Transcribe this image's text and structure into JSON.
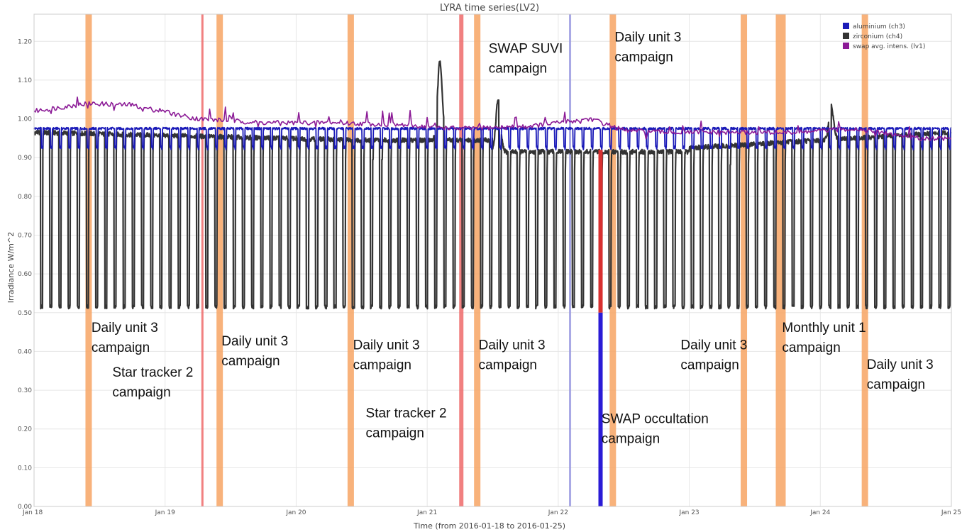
{
  "chart_data": {
    "type": "line",
    "title": "LYRA time series(LV2)",
    "xlabel": "Time (from 2016-01-18 to 2016-01-25)",
    "ylabel": "Irradiance W/m^2",
    "xlim": [
      "2016-01-18",
      "2016-01-25"
    ],
    "ylim": [
      0,
      1.27
    ],
    "grid": true,
    "legend_position": "top-right",
    "x_ticks": [
      {
        "label": "Jan 18",
        "date": "2016-01-18"
      },
      {
        "label": "Jan 19",
        "date": "2016-01-19"
      },
      {
        "label": "Jan 20",
        "date": "2016-01-20"
      },
      {
        "label": "Jan 21",
        "date": "2016-01-21"
      },
      {
        "label": "Jan 22",
        "date": "2016-01-22"
      },
      {
        "label": "Jan 23",
        "date": "2016-01-23"
      },
      {
        "label": "Jan 24",
        "date": "2016-01-24"
      },
      {
        "label": "Jan 25",
        "date": "2016-01-25"
      }
    ],
    "y_ticks": [
      {
        "label": "0.00",
        "value": 0.0
      },
      {
        "label": "0.10",
        "value": 0.1
      },
      {
        "label": "0.20",
        "value": 0.2
      },
      {
        "label": "0.30",
        "value": 0.3
      },
      {
        "label": "0.40",
        "value": 0.4
      },
      {
        "label": "0.50",
        "value": 0.5
      },
      {
        "label": "0.60",
        "value": 0.6
      },
      {
        "label": "0.70",
        "value": 0.7
      },
      {
        "label": "0.80",
        "value": 0.8
      },
      {
        "label": "0.90",
        "value": 0.9
      },
      {
        "label": "1.00",
        "value": 1.0
      },
      {
        "label": "1.10",
        "value": 1.1
      },
      {
        "label": "1.20",
        "value": 1.2
      }
    ],
    "series": [
      {
        "name": "aluminium (ch3)",
        "color": "#1a1ab8",
        "pattern": "periodic dips",
        "high": 0.975,
        "low": 0.92,
        "cycles_per_day": 14.3
      },
      {
        "name": "zirconium (ch4)",
        "color": "#333333",
        "pattern": "periodic deep dips",
        "high_start": 0.965,
        "high_mid": 0.945,
        "high_end": 0.965,
        "low": 0.51,
        "cycles_per_day": 14.3,
        "spikes": [
          {
            "date": "2016-01-21T02:20",
            "value": 1.15
          },
          {
            "date": "2016-01-21T13:00",
            "value": 1.08
          },
          {
            "date": "2016-01-24T02:00",
            "value": 1.03
          }
        ]
      },
      {
        "name": "swap avg. intens. (lv1)",
        "color": "#8b1a96",
        "pattern": "noisy trend",
        "points": [
          {
            "date": "2016-01-18T00:00",
            "value": 1.02
          },
          {
            "date": "2016-01-18T10:00",
            "value": 1.04
          },
          {
            "date": "2016-01-18T18:00",
            "value": 1.035
          },
          {
            "date": "2016-01-19T06:00",
            "value": 1.0
          },
          {
            "date": "2016-01-19T18:00",
            "value": 0.99
          },
          {
            "date": "2016-01-20T06:00",
            "value": 0.99
          },
          {
            "date": "2016-01-20T18:00",
            "value": 0.985
          },
          {
            "date": "2016-01-21T06:00",
            "value": 0.975
          },
          {
            "date": "2016-01-21T18:00",
            "value": 0.98
          },
          {
            "date": "2016-01-22T06:00",
            "value": 1.0
          },
          {
            "date": "2016-01-22T12:00",
            "value": 0.97
          },
          {
            "date": "2016-01-22T20:00",
            "value": 0.965
          },
          {
            "date": "2016-01-23T06:00",
            "value": 0.965
          },
          {
            "date": "2016-01-23T20:00",
            "value": 0.965
          },
          {
            "date": "2016-01-24T06:00",
            "value": 0.975
          },
          {
            "date": "2016-01-24T18:00",
            "value": 0.95
          },
          {
            "date": "2016-01-25T00:00",
            "value": 0.95
          }
        ]
      }
    ],
    "campaign_bands": [
      {
        "date": "2016-01-18T10:00",
        "color": "#f7a564",
        "kind": "wide"
      },
      {
        "date": "2016-01-19T06:50",
        "color": "#ee6a6a",
        "kind": "narrow"
      },
      {
        "date": "2016-01-19T10:00",
        "color": "#f7a564",
        "kind": "wide"
      },
      {
        "date": "2016-01-20T10:00",
        "color": "#f7a564",
        "kind": "wide"
      },
      {
        "date": "2016-01-21T06:15",
        "color": "#ee6a6a",
        "kind": "medium"
      },
      {
        "date": "2016-01-21T09:10",
        "color": "#f7a564",
        "kind": "wide"
      },
      {
        "date": "2016-01-22T02:10",
        "color": "#9a9ae0",
        "kind": "narrow"
      },
      {
        "date": "2016-01-22T10:00",
        "color": "#f7a564",
        "kind": "wide"
      },
      {
        "date": "2016-01-23T10:00",
        "color": "#f7a564",
        "kind": "wide"
      },
      {
        "date": "2016-01-23T16:45",
        "color": "#f7a564",
        "kind": "xwide"
      },
      {
        "date": "2016-01-24T08:10",
        "color": "#f7a564",
        "kind": "wide"
      }
    ],
    "occultation": {
      "date": "2016-01-22T07:45",
      "value_top": 0.5,
      "value_bottom": 0.0,
      "color": "#2b1bd6",
      "red_top": 0.92,
      "red_color": "#d83030"
    },
    "annotations": [
      {
        "lines": [
          "Daily unit 3",
          "campaign"
        ],
        "date": "2016-01-18T10:30",
        "value": 0.45,
        "style": "annot"
      },
      {
        "lines": [
          "Star tracker 2",
          "campaign"
        ],
        "date": "2016-01-18T14:20",
        "value": 0.335,
        "style": "annot"
      },
      {
        "lines": [
          "Daily unit 3",
          "campaign"
        ],
        "date": "2016-01-19T10:20",
        "value": 0.415,
        "style": "annot"
      },
      {
        "lines": [
          "Daily unit 3",
          "campaign"
        ],
        "date": "2016-01-20T10:25",
        "value": 0.405,
        "style": "annot"
      },
      {
        "lines": [
          "Star tracker 2",
          "campaign"
        ],
        "date": "2016-01-20T12:45",
        "value": 0.23,
        "style": "annot"
      },
      {
        "lines": [
          "Daily unit 3",
          "campaign"
        ],
        "date": "2016-01-21T09:25",
        "value": 0.405,
        "style": "annot"
      },
      {
        "lines": [
          "SWAP SUVI",
          "campaign"
        ],
        "date": "2016-01-21T11:15",
        "value": 1.17,
        "style": "annot"
      },
      {
        "lines": [
          "Daily unit 3",
          "campaign"
        ],
        "date": "2016-01-22T10:20",
        "value": 1.2,
        "style": "annot"
      },
      {
        "lines": [
          "SWAP occultation",
          "campaign"
        ],
        "date": "2016-01-22T07:55",
        "value": 0.215,
        "style": "annot-cond"
      },
      {
        "lines": [
          "Daily unit 3",
          "campaign"
        ],
        "date": "2016-01-22T22:25",
        "value": 0.405,
        "style": "annot"
      },
      {
        "lines": [
          "Monthly unit 1",
          "campaign"
        ],
        "date": "2016-01-23T17:00",
        "value": 0.45,
        "style": "annot-cond"
      },
      {
        "lines": [
          "Daily unit 3",
          "campaign"
        ],
        "date": "2016-01-24T08:30",
        "value": 0.355,
        "style": "annot"
      }
    ]
  }
}
